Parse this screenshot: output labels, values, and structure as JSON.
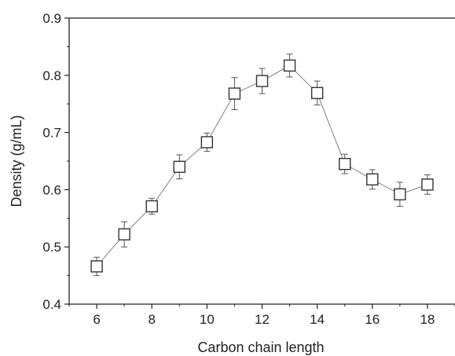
{
  "chart_data": {
    "type": "line",
    "title": "",
    "xlabel": "Carbon chain length",
    "ylabel": "Density (g/mL)",
    "xlim": [
      5,
      19
    ],
    "ylim": [
      0.4,
      0.9
    ],
    "grid": false,
    "x_ticks": [
      6,
      8,
      10,
      12,
      14,
      16,
      18
    ],
    "x_tick_labels": [
      "6",
      "8",
      "10",
      "12",
      "14",
      "16",
      "18"
    ],
    "y_ticks": [
      0.4,
      0.5,
      0.6,
      0.7,
      0.8,
      0.9
    ],
    "y_tick_labels": [
      "0.4",
      "0.5",
      "0.6",
      "0.7",
      "0.8",
      "0.9"
    ],
    "marker": "open-square",
    "line_color": "#808080",
    "marker_color": "#333333",
    "series": [
      {
        "x": [
          6,
          7,
          8,
          9,
          10,
          11,
          12,
          13,
          14,
          15,
          16,
          17,
          18
        ],
        "y": [
          0.466,
          0.522,
          0.571,
          0.64,
          0.683,
          0.768,
          0.79,
          0.817,
          0.769,
          0.645,
          0.618,
          0.592,
          0.609
        ],
        "error": [
          0.016,
          0.022,
          0.014,
          0.021,
          0.016,
          0.028,
          0.022,
          0.02,
          0.021,
          0.017,
          0.017,
          0.021,
          0.017
        ]
      }
    ]
  }
}
